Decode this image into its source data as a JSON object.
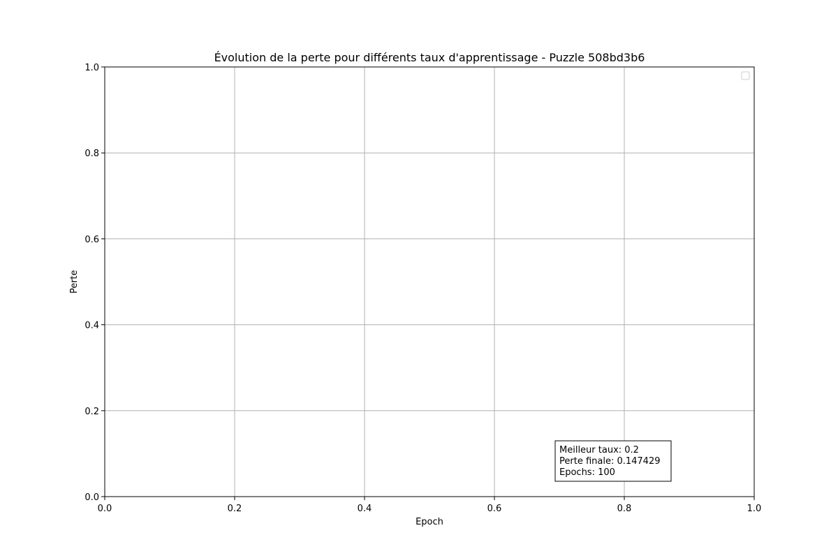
{
  "chart_data": {
    "type": "line",
    "title": "Évolution de la perte pour différents taux d'apprentissage - Puzzle 508bd3b6",
    "xlabel": "Epoch",
    "ylabel": "Perte",
    "xlim": [
      0.0,
      1.0
    ],
    "ylim": [
      0.0,
      1.0
    ],
    "xticks": [
      "0.0",
      "0.2",
      "0.4",
      "0.6",
      "0.8",
      "1.0"
    ],
    "yticks": [
      "0.0",
      "0.2",
      "0.4",
      "0.6",
      "0.8",
      "1.0"
    ],
    "grid": true,
    "legend": {
      "position": "upper-right",
      "entries": []
    },
    "series": [],
    "annotation": {
      "lines": [
        "Meilleur taux: 0.2",
        "Perte finale: 0.147429",
        "Epochs: 100"
      ]
    }
  }
}
